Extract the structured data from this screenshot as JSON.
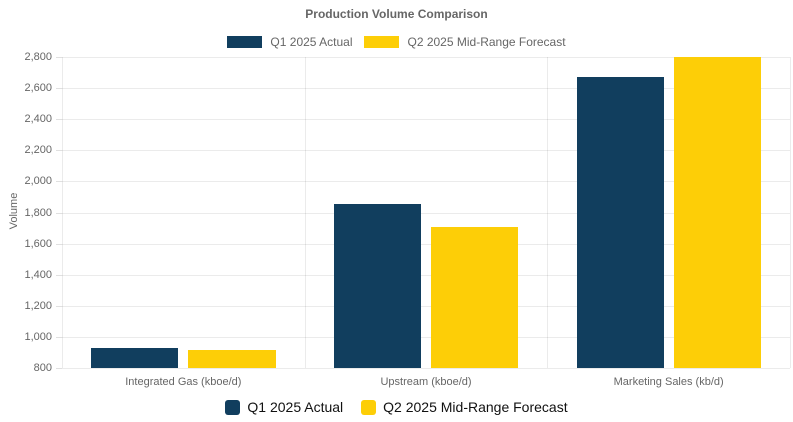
{
  "chart_data": {
    "type": "bar",
    "title": "Production Volume Comparison",
    "xlabel": "",
    "ylabel": "Volume",
    "categories": [
      "Integrated Gas (kboe/d)",
      "Upstream (kboe/d)",
      "Marketing Sales (kb/d)"
    ],
    "series": [
      {
        "name": "Q1 2025 Actual",
        "color": "#113e5e",
        "values": [
          927,
          1855,
          2674
        ]
      },
      {
        "name": "Q2 2025 Mid-Range Forecast",
        "color": "#fdce07",
        "values": [
          915,
          1710,
          2800
        ]
      }
    ],
    "ylim": [
      800,
      2800
    ],
    "ytick_step": 200,
    "yticks": [
      "800",
      "1,000",
      "1,200",
      "1,400",
      "1,600",
      "1,800",
      "2,000",
      "2,200",
      "2,400",
      "2,600",
      "2,800"
    ],
    "grid": true,
    "legend_positions": [
      "top",
      "bottom"
    ]
  },
  "style": {
    "series_colors": [
      "#113e5e",
      "#fdce07"
    ],
    "title_color": "#666666",
    "axis_text_color": "#666666",
    "bottom_legend_text_color": "#111111",
    "grid_color": "rgba(0,0,0,0.08)",
    "background": "#ffffff"
  }
}
